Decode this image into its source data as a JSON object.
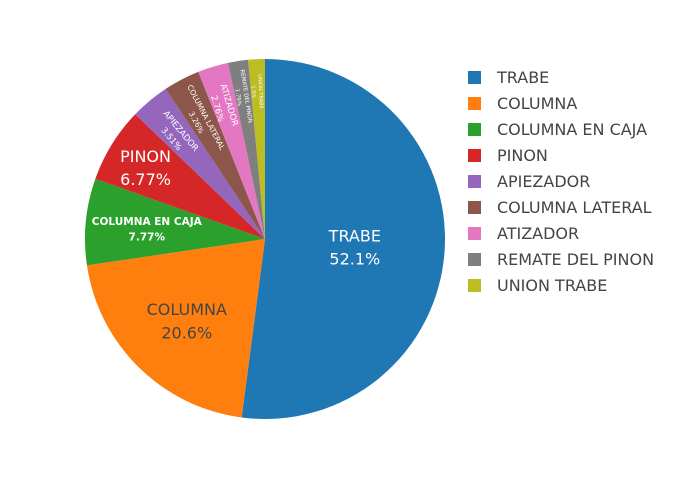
{
  "chart_data": {
    "type": "pie",
    "title": "",
    "legend_position": "right",
    "slices": [
      {
        "label": "TRABE",
        "percent_text": "52.1%",
        "value": 52.1,
        "color": "#1f77b4"
      },
      {
        "label": "COLUMNA",
        "percent_text": "20.6%",
        "value": 20.6,
        "color": "#ff7f0e"
      },
      {
        "label": "COLUMNA EN CAJA",
        "percent_text": "7.77%",
        "value": 7.77,
        "color": "#2ca02c"
      },
      {
        "label": "PINON",
        "percent_text": "6.77%",
        "value": 6.77,
        "color": "#d62728"
      },
      {
        "label": "APIEZADOR",
        "percent_text": "3.51%",
        "value": 3.51,
        "color": "#9467bd"
      },
      {
        "label": "COLUMNA LATERAL",
        "percent_text": "3.26%",
        "value": 3.26,
        "color": "#8c564b"
      },
      {
        "label": "ATIZADOR",
        "percent_text": "2.76%",
        "value": 2.76,
        "color": "#e377c2"
      },
      {
        "label": "REMATE DEL PINON",
        "percent_text": "1.79%",
        "value": 1.79,
        "color": "#7f7f7f"
      },
      {
        "label": "UNION TRABE",
        "percent_text": "1.5%",
        "value": 1.5,
        "color": "#bcbd22"
      }
    ]
  }
}
